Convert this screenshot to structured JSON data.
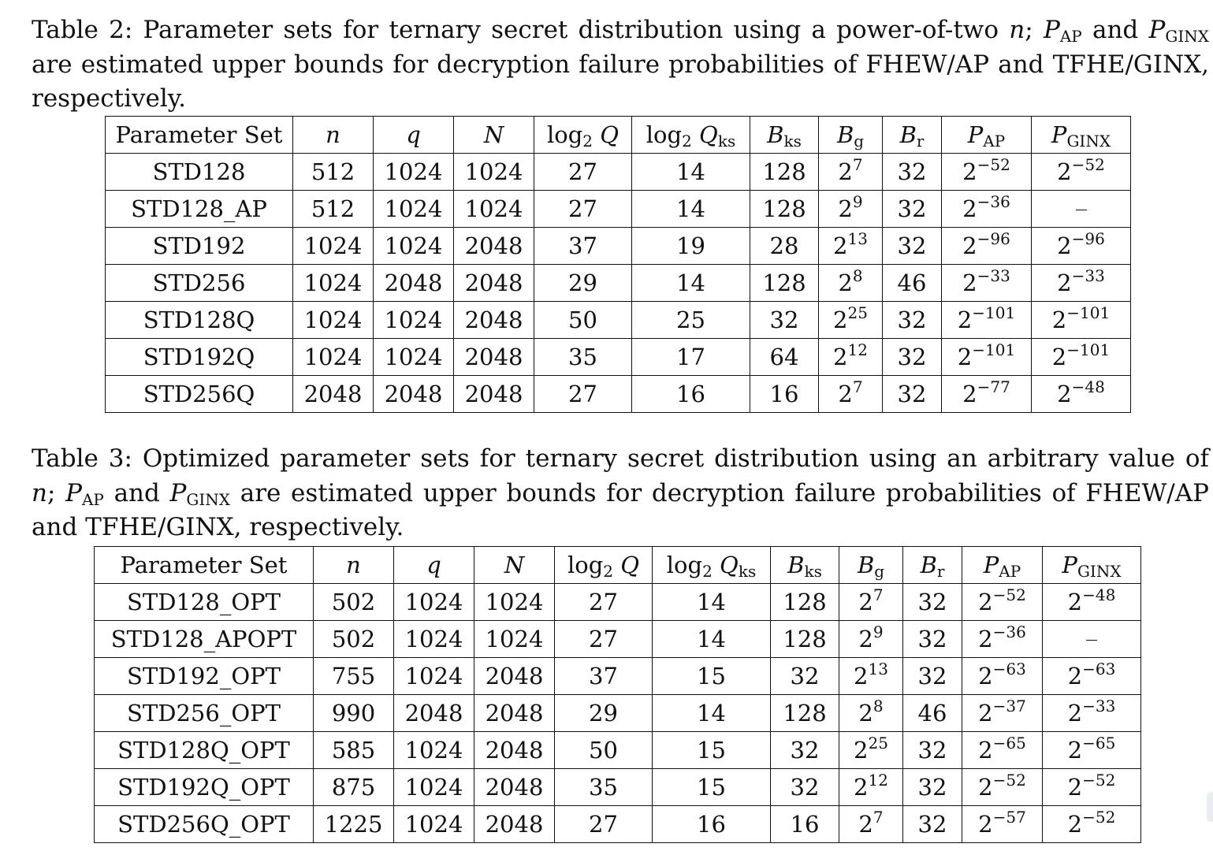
{
  "table2": {
    "caption": {
      "label": "Table 2:",
      "text_before_n": "Parameter sets for ternary secret distribution using a power-of-two",
      "n_var": "n",
      "after_n": ";",
      "p_symbol": "P",
      "p1_sub": "AP",
      "and_word": "and",
      "p2_sub": "GINX",
      "text_after": "are estimated upper bounds for decryption failure probabilities of FHEW/AP and TFHE/GINX, respectively."
    },
    "header": {
      "param_set": "Parameter Set",
      "n": "n",
      "q": "q",
      "N": "N",
      "logQ_log": "log",
      "logQ_sub": "2",
      "logQ_var": "Q",
      "logQks_log": "log",
      "logQks_sub": "2",
      "logQks_var": "Q",
      "logQks_sub2": "ks",
      "Bks_var": "B",
      "Bks_sub": "ks",
      "Bg_var": "B",
      "Bg_sub": "g",
      "Br_var": "B",
      "Br_sub": "r",
      "PAP_var": "P",
      "PAP_sub": "AP",
      "PGINX_var": "P",
      "PGINX_sub": "GINX"
    },
    "rows": [
      {
        "name": "STD128",
        "n": "512",
        "q": "1024",
        "N": "1024",
        "logQ": "27",
        "logQks": "14",
        "Bks": "128",
        "Bg_base": "2",
        "Bg_exp": "7",
        "Br": "32",
        "PAP_base": "2",
        "PAP_exp": "−52",
        "PGINX_base": "2",
        "PGINX_exp": "−52"
      },
      {
        "name": "STD128_AP",
        "n": "512",
        "q": "1024",
        "N": "1024",
        "logQ": "27",
        "logQks": "14",
        "Bks": "128",
        "Bg_base": "2",
        "Bg_exp": "9",
        "Br": "32",
        "PAP_base": "2",
        "PAP_exp": "−36",
        "PGINX_base": "",
        "PGINX_exp": ""
      },
      {
        "name": "STD192",
        "n": "1024",
        "q": "1024",
        "N": "2048",
        "logQ": "37",
        "logQks": "19",
        "Bks": "28",
        "Bg_base": "2",
        "Bg_exp": "13",
        "Br": "32",
        "PAP_base": "2",
        "PAP_exp": "−96",
        "PGINX_base": "2",
        "PGINX_exp": "−96"
      },
      {
        "name": "STD256",
        "n": "1024",
        "q": "2048",
        "N": "2048",
        "logQ": "29",
        "logQks": "14",
        "Bks": "128",
        "Bg_base": "2",
        "Bg_exp": "8",
        "Br": "46",
        "PAP_base": "2",
        "PAP_exp": "−33",
        "PGINX_base": "2",
        "PGINX_exp": "−33"
      },
      {
        "name": "STD128Q",
        "n": "1024",
        "q": "1024",
        "N": "2048",
        "logQ": "50",
        "logQks": "25",
        "Bks": "32",
        "Bg_base": "2",
        "Bg_exp": "25",
        "Br": "32",
        "PAP_base": "2",
        "PAP_exp": "−101",
        "PGINX_base": "2",
        "PGINX_exp": "−101"
      },
      {
        "name": "STD192Q",
        "n": "1024",
        "q": "1024",
        "N": "2048",
        "logQ": "35",
        "logQks": "17",
        "Bks": "64",
        "Bg_base": "2",
        "Bg_exp": "12",
        "Br": "32",
        "PAP_base": "2",
        "PAP_exp": "−101",
        "PGINX_base": "2",
        "PGINX_exp": "−101"
      },
      {
        "name": "STD256Q",
        "n": "2048",
        "q": "2048",
        "N": "2048",
        "logQ": "27",
        "logQks": "16",
        "Bks": "16",
        "Bg_base": "2",
        "Bg_exp": "7",
        "Br": "32",
        "PAP_base": "2",
        "PAP_exp": "−77",
        "PGINX_base": "2",
        "PGINX_exp": "−48"
      }
    ]
  },
  "table3": {
    "caption": {
      "label": "Table 3:",
      "text_before_n": "Optimized parameter sets for ternary secret distribution using an arbitrary value of",
      "n_var": "n",
      "after_n": ";",
      "p_symbol": "P",
      "p1_sub": "AP",
      "and_word": "and",
      "p2_sub": "GINX",
      "text_after": "are estimated upper bounds for decryption failure probabilities of FHEW/AP and TFHE/GINX, respectively."
    },
    "rows": [
      {
        "name": "STD128_OPT",
        "n": "502",
        "q": "1024",
        "N": "1024",
        "logQ": "27",
        "logQks": "14",
        "Bks": "128",
        "Bg_base": "2",
        "Bg_exp": "7",
        "Br": "32",
        "PAP_base": "2",
        "PAP_exp": "−52",
        "PGINX_base": "2",
        "PGINX_exp": "−48"
      },
      {
        "name": "STD128_APOPT",
        "n": "502",
        "q": "1024",
        "N": "1024",
        "logQ": "27",
        "logQks": "14",
        "Bks": "128",
        "Bg_base": "2",
        "Bg_exp": "9",
        "Br": "32",
        "PAP_base": "2",
        "PAP_exp": "−36",
        "PGINX_base": "",
        "PGINX_exp": ""
      },
      {
        "name": "STD192_OPT",
        "n": "755",
        "q": "1024",
        "N": "2048",
        "logQ": "37",
        "logQks": "15",
        "Bks": "32",
        "Bg_base": "2",
        "Bg_exp": "13",
        "Br": "32",
        "PAP_base": "2",
        "PAP_exp": "−63",
        "PGINX_base": "2",
        "PGINX_exp": "−63"
      },
      {
        "name": "STD256_OPT",
        "n": "990",
        "q": "2048",
        "N": "2048",
        "logQ": "29",
        "logQks": "14",
        "Bks": "128",
        "Bg_base": "2",
        "Bg_exp": "8",
        "Br": "46",
        "PAP_base": "2",
        "PAP_exp": "−37",
        "PGINX_base": "2",
        "PGINX_exp": "−33"
      },
      {
        "name": "STD128Q_OPT",
        "n": "585",
        "q": "1024",
        "N": "2048",
        "logQ": "50",
        "logQks": "15",
        "Bks": "32",
        "Bg_base": "2",
        "Bg_exp": "25",
        "Br": "32",
        "PAP_base": "2",
        "PAP_exp": "−65",
        "PGINX_base": "2",
        "PGINX_exp": "−65"
      },
      {
        "name": "STD192Q_OPT",
        "n": "875",
        "q": "1024",
        "N": "2048",
        "logQ": "35",
        "logQks": "15",
        "Bks": "32",
        "Bg_base": "2",
        "Bg_exp": "12",
        "Br": "32",
        "PAP_base": "2",
        "PAP_exp": "−52",
        "PGINX_base": "2",
        "PGINX_exp": "−52"
      },
      {
        "name": "STD256Q_OPT",
        "n": "1225",
        "q": "1024",
        "N": "2048",
        "logQ": "27",
        "logQks": "16",
        "Bks": "16",
        "Bg_base": "2",
        "Bg_exp": "7",
        "Br": "32",
        "PAP_base": "2",
        "PAP_exp": "−57",
        "PGINX_base": "2",
        "PGINX_exp": "−52"
      }
    ]
  }
}
